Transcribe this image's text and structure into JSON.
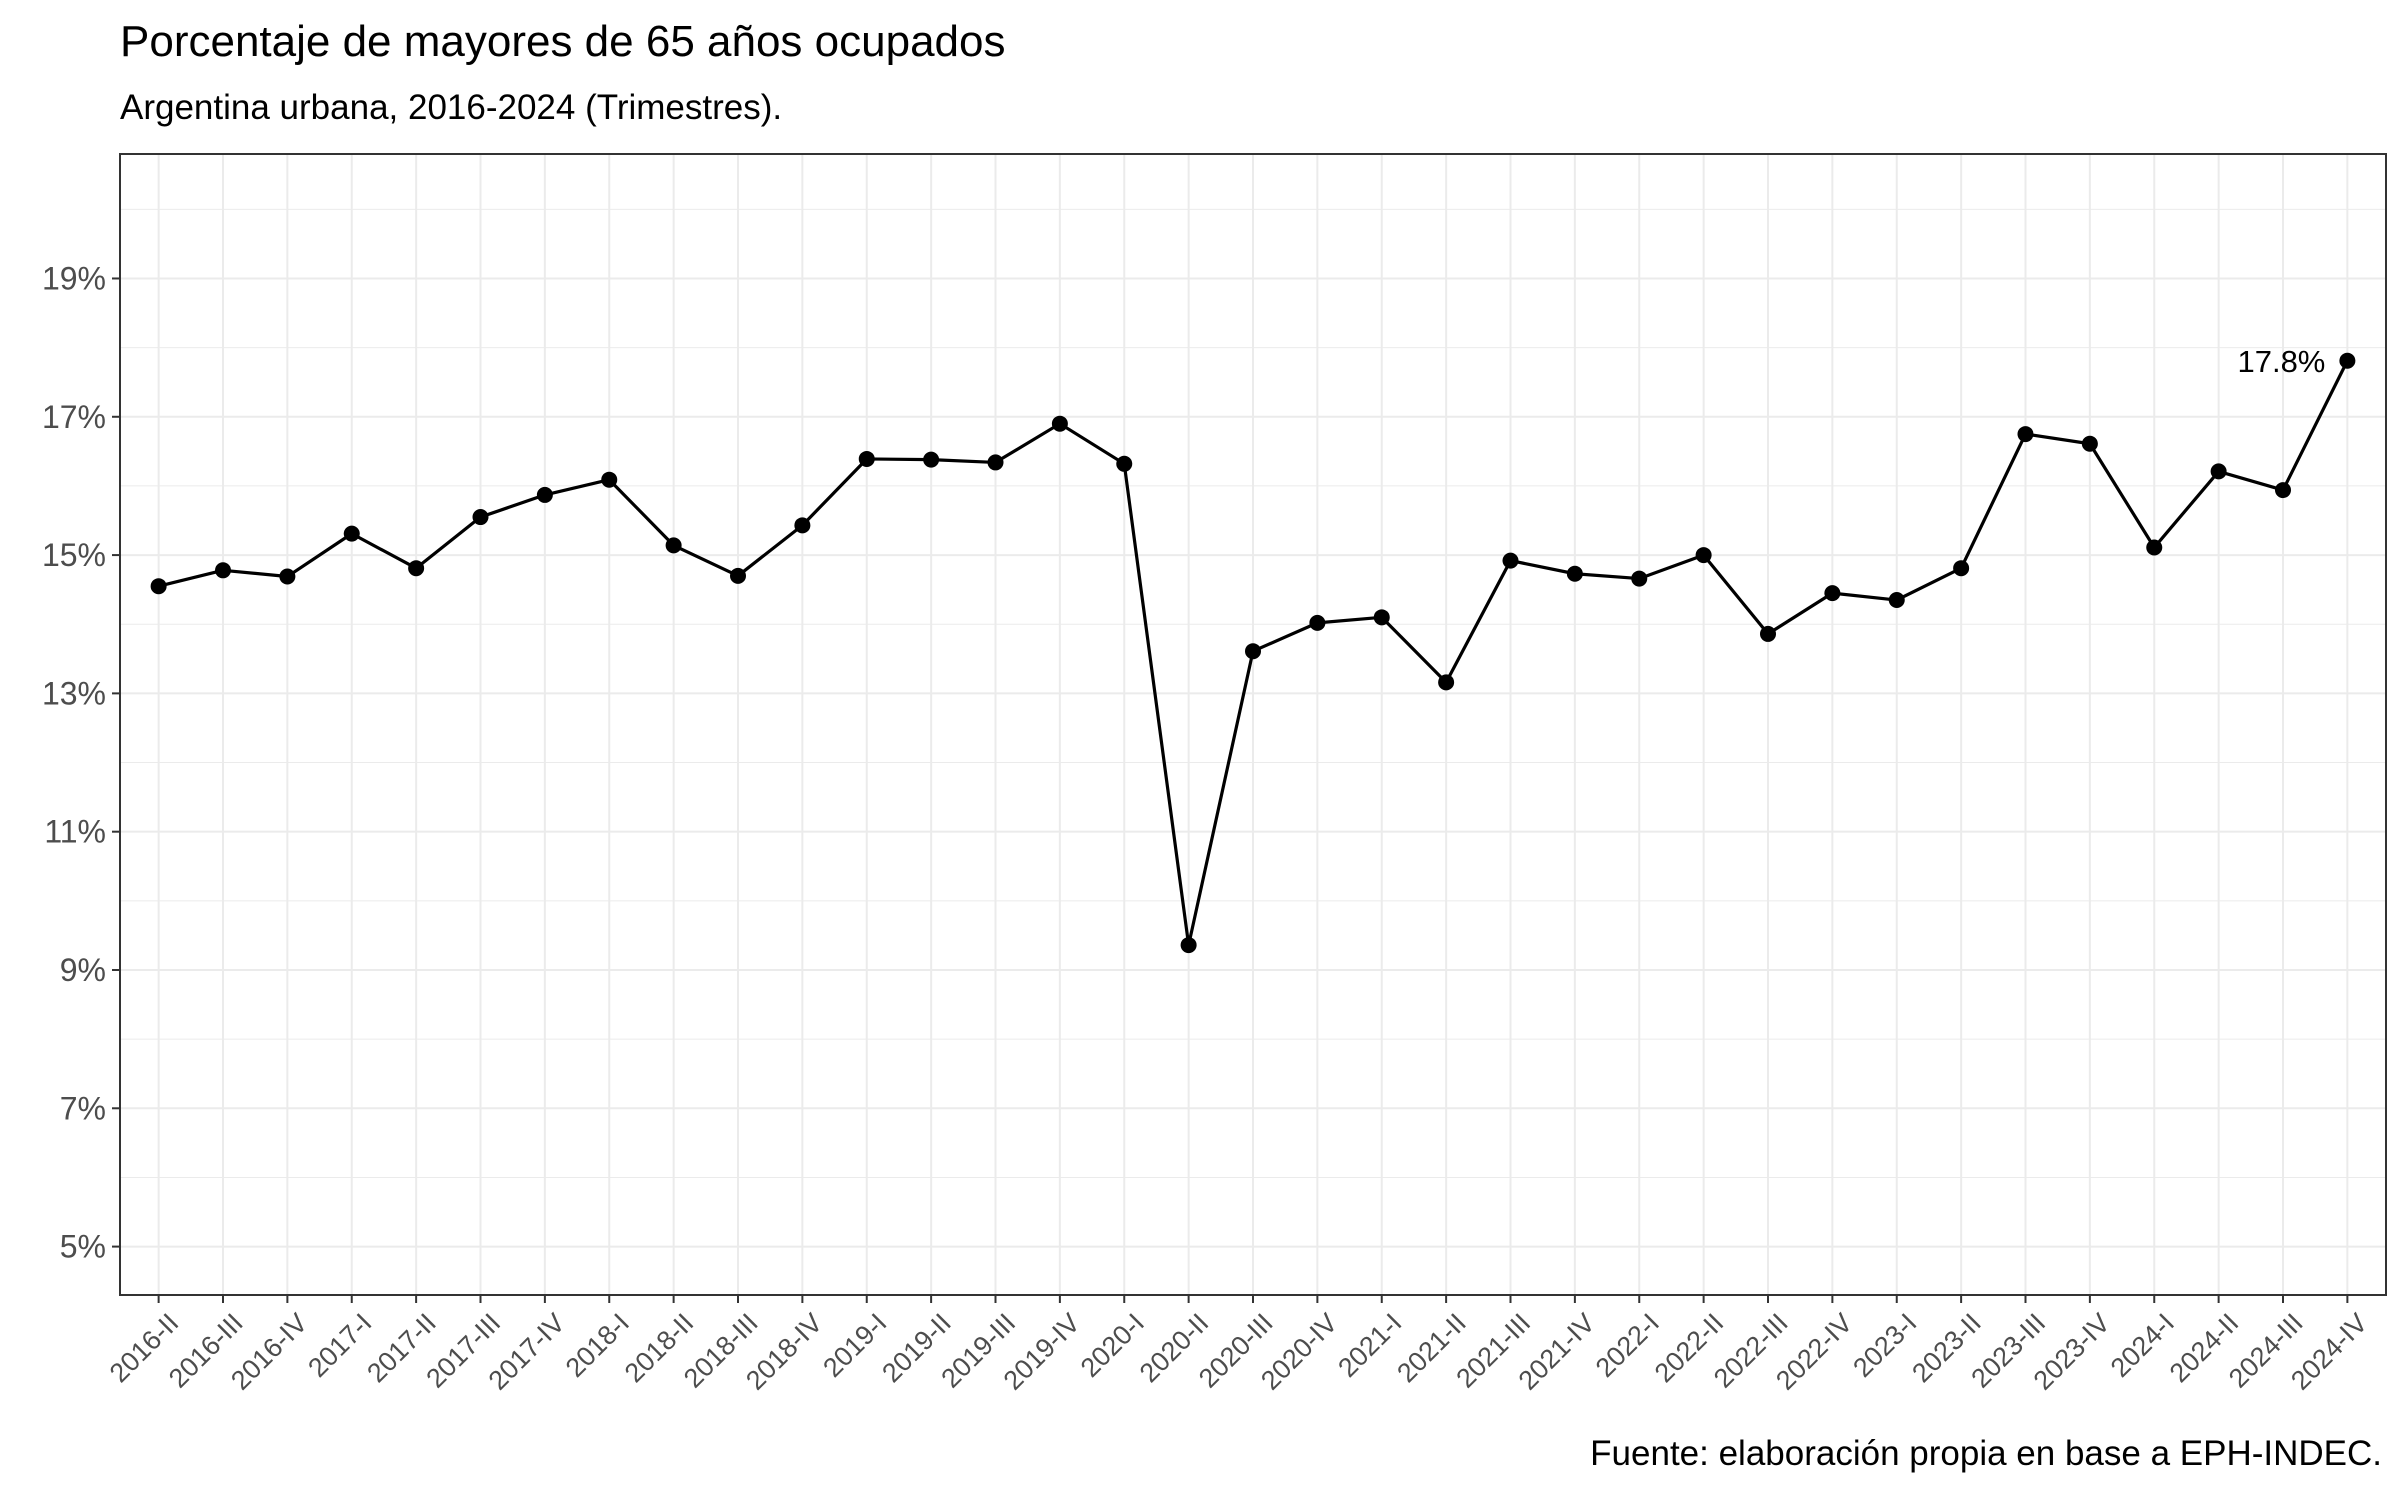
{
  "chart_data": {
    "type": "line",
    "title": "Porcentaje de mayores de 65 años ocupados",
    "subtitle": "Argentina urbana, 2016-2024 (Trimestres).",
    "caption": "Fuente: elaboración propia en base a EPH-INDEC.",
    "xlabel": "",
    "ylabel": "",
    "ylim": [
      4.3,
      20.8
    ],
    "y_ticks": [
      5,
      7,
      9,
      11,
      13,
      15,
      17,
      19
    ],
    "y_tick_labels": [
      "5%",
      "7%",
      "9%",
      "11%",
      "13%",
      "15%",
      "17%",
      "19%"
    ],
    "grid": true,
    "categories": [
      "2016-II",
      "2016-III",
      "2016-IV",
      "2017-I",
      "2017-II",
      "2017-III",
      "2017-IV",
      "2018-I",
      "2018-II",
      "2018-III",
      "2018-IV",
      "2019-I",
      "2019-II",
      "2019-III",
      "2019-IV",
      "2020-I",
      "2020-II",
      "2020-III",
      "2020-IV",
      "2021-I",
      "2021-II",
      "2021-III",
      "2021-IV",
      "2022-I",
      "2022-II",
      "2022-III",
      "2022-IV",
      "2023-I",
      "2023-II",
      "2023-III",
      "2023-IV",
      "2024-I",
      "2024-II",
      "2024-III",
      "2024-IV"
    ],
    "values": [
      14.55,
      14.78,
      14.69,
      15.31,
      14.81,
      15.55,
      15.87,
      16.09,
      15.14,
      14.7,
      15.43,
      16.39,
      16.38,
      16.34,
      16.9,
      16.32,
      9.36,
      13.61,
      14.02,
      14.1,
      13.16,
      14.92,
      14.73,
      14.66,
      15.0,
      13.86,
      14.45,
      14.35,
      14.81,
      16.75,
      16.61,
      15.11,
      16.21,
      15.94,
      17.81
    ],
    "annotations": [
      {
        "category": "2024-IV",
        "value": 17.81,
        "text": "17.8%"
      }
    ],
    "line_color": "#000000",
    "point_color": "#000000",
    "grid_color": "#ebebeb",
    "panel_border_color": "#333333",
    "tick_label_color": "#4d4d4d"
  }
}
